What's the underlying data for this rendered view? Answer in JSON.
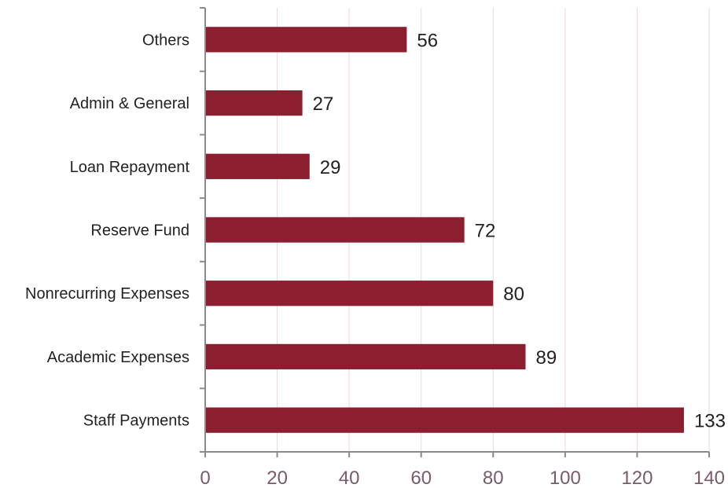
{
  "chart_data": {
    "type": "bar",
    "orientation": "horizontal",
    "categories": [
      "Others",
      "Admin & General",
      "Loan Repayment",
      "Reserve Fund",
      "Nonrecurring Expenses",
      "Academic Expenses",
      "Staff Payments"
    ],
    "values": [
      56,
      27,
      29,
      72,
      80,
      89,
      133
    ],
    "value_labels": [
      "56",
      "27",
      "29",
      "72",
      "80",
      "89",
      "133"
    ],
    "x_ticks": [
      "0",
      "20",
      "40",
      "60",
      "80",
      "100",
      "120",
      "140"
    ],
    "xlim": [
      0,
      140
    ],
    "title": "",
    "xlabel": "",
    "ylabel": "",
    "grid": "vertical",
    "legend": "none",
    "colors": {
      "bar": "#8b1f2f",
      "grid": "#ecd8dc",
      "axis": "#8a8a8a",
      "tick_label": "#7a5a6a",
      "text": "#222222"
    }
  }
}
